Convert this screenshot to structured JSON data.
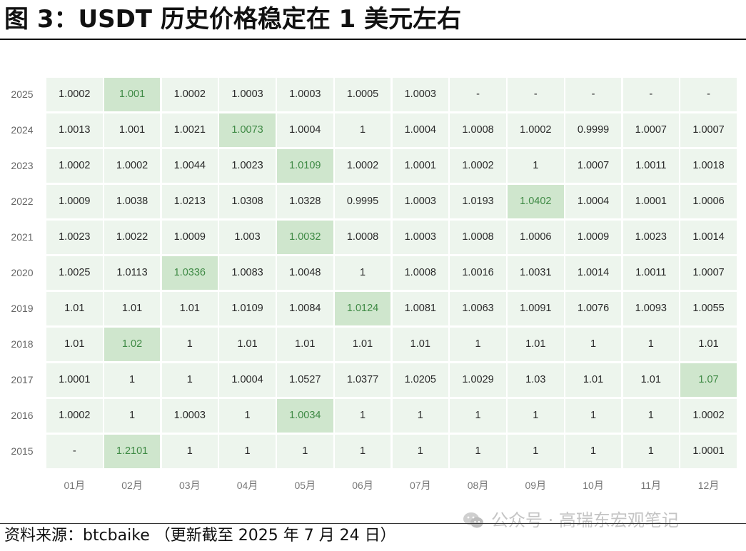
{
  "title": "图 3：USDT 历史价格稳定在 1 美元左右",
  "source": "资料来源：btcbaike （更新截至 2025 年 7 月 24 日）",
  "watermark": "公众号 · 高瑞东宏观笔记",
  "colors": {
    "cell": "#edf5ed",
    "highlight": "#cfe6cd",
    "highlight_text": "#3f8a45"
  },
  "chart_data": {
    "type": "heatmap",
    "x_categories": [
      "01月",
      "02月",
      "03月",
      "04月",
      "05月",
      "06月",
      "07月",
      "08月",
      "09月",
      "10月",
      "11月",
      "12月"
    ],
    "rows": [
      {
        "year": "2025",
        "values": [
          "1.0002",
          "1.001",
          "1.0002",
          "1.0003",
          "1.0003",
          "1.0005",
          "1.0003",
          "-",
          "-",
          "-",
          "-",
          "-"
        ],
        "highlight": 1
      },
      {
        "year": "2024",
        "values": [
          "1.0013",
          "1.001",
          "1.0021",
          "1.0073",
          "1.0004",
          "1",
          "1.0004",
          "1.0008",
          "1.0002",
          "0.9999",
          "1.0007",
          "1.0007"
        ],
        "highlight": 3
      },
      {
        "year": "2023",
        "values": [
          "1.0002",
          "1.0002",
          "1.0044",
          "1.0023",
          "1.0109",
          "1.0002",
          "1.0001",
          "1.0002",
          "1",
          "1.0007",
          "1.0011",
          "1.0018"
        ],
        "highlight": 4
      },
      {
        "year": "2022",
        "values": [
          "1.0009",
          "1.0038",
          "1.0213",
          "1.0308",
          "1.0328",
          "0.9995",
          "1.0003",
          "1.0193",
          "1.0402",
          "1.0004",
          "1.0001",
          "1.0006"
        ],
        "highlight": 8
      },
      {
        "year": "2021",
        "values": [
          "1.0023",
          "1.0022",
          "1.0009",
          "1.003",
          "1.0032",
          "1.0008",
          "1.0003",
          "1.0008",
          "1.0006",
          "1.0009",
          "1.0023",
          "1.0014"
        ],
        "highlight": 4
      },
      {
        "year": "2020",
        "values": [
          "1.0025",
          "1.0113",
          "1.0336",
          "1.0083",
          "1.0048",
          "1",
          "1.0008",
          "1.0016",
          "1.0031",
          "1.0014",
          "1.0011",
          "1.0007"
        ],
        "highlight": 2
      },
      {
        "year": "2019",
        "values": [
          "1.01",
          "1.01",
          "1.01",
          "1.0109",
          "1.0084",
          "1.0124",
          "1.0081",
          "1.0063",
          "1.0091",
          "1.0076",
          "1.0093",
          "1.0055"
        ],
        "highlight": 5
      },
      {
        "year": "2018",
        "values": [
          "1.01",
          "1.02",
          "1",
          "1.01",
          "1.01",
          "1.01",
          "1.01",
          "1",
          "1.01",
          "1",
          "1",
          "1.01"
        ],
        "highlight": 1
      },
      {
        "year": "2017",
        "values": [
          "1.0001",
          "1",
          "1",
          "1.0004",
          "1.0527",
          "1.0377",
          "1.0205",
          "1.0029",
          "1.03",
          "1.01",
          "1.01",
          "1.07"
        ],
        "highlight": 11
      },
      {
        "year": "2016",
        "values": [
          "1.0002",
          "1",
          "1.0003",
          "1",
          "1.0034",
          "1",
          "1",
          "1",
          "1",
          "1",
          "1",
          "1.0002"
        ],
        "highlight": 4
      },
      {
        "year": "2015",
        "values": [
          "-",
          "1.2101",
          "1",
          "1",
          "1",
          "1",
          "1",
          "1",
          "1",
          "1",
          "1",
          "1.0001"
        ],
        "highlight": 1
      }
    ]
  }
}
